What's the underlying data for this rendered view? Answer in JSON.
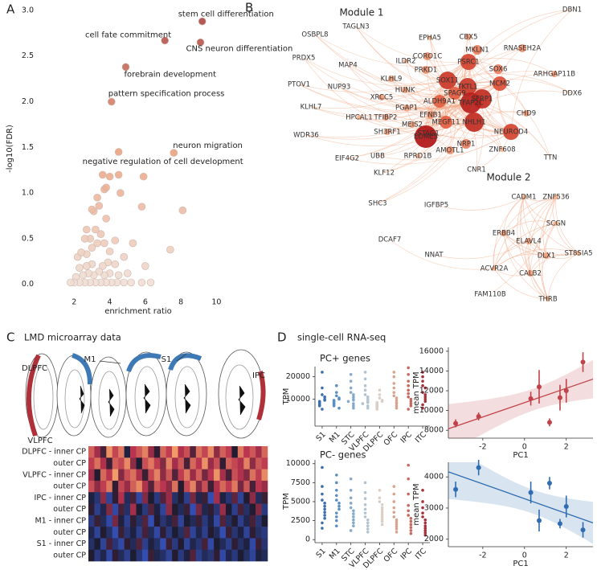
{
  "chart_data": [
    {
      "type": "scatter",
      "label": "A",
      "xlabel": "enrichment ratio",
      "ylabel": "-log10(FDR)",
      "xlim": [
        0,
        11.2
      ],
      "ylim": [
        -0.1,
        3.07
      ],
      "xticks": [
        2,
        4,
        6,
        8,
        10
      ],
      "yticks": [
        {
          "value": 0,
          "label": "0.0"
        },
        0.5,
        {
          "value": 1,
          "label": "1.0"
        },
        1.5,
        {
          "value": 2,
          "label": "2.0"
        },
        2.5,
        {
          "value": 3,
          "label": "3.0"
        }
      ],
      "color_scale": [
        "#efe3dc",
        "#eba07e",
        "#a63b3b"
      ],
      "x": [
        9.2,
        7.1,
        9.1,
        4.9,
        4.1,
        7.6,
        4.5,
        3.6,
        4.0,
        4.5,
        5.9,
        3.8,
        3.7,
        3.3,
        4.6,
        3.0,
        3.1,
        3.4,
        5.8,
        8.1,
        3.8,
        2.7,
        3.2,
        3.5,
        2.6,
        2.9,
        4.3,
        7.4,
        3.0,
        2.4,
        4.0,
        2.2,
        2.7,
        4.8,
        3.3,
        3.7,
        5.3,
        1.8,
        2.0,
        2.3,
        2.6,
        2.9,
        3.2,
        3.5,
        3.8,
        4.1,
        4.4,
        4.8,
        5.2,
        5.8,
        6.3,
        2.1,
        2.5,
        2.8,
        3.1,
        3.4,
        3.7,
        4.0,
        4.5,
        5.0,
        2.3,
        2.7,
        3.0,
        3.6,
        3.9,
        4.3,
        6.0
      ],
      "values": [
        2.88,
        2.67,
        2.65,
        2.38,
        2.0,
        1.44,
        1.45,
        1.2,
        1.18,
        1.2,
        1.18,
        1.06,
        1.04,
        0.95,
        1.0,
        0.82,
        0.8,
        0.86,
        0.85,
        0.81,
        0.72,
        0.6,
        0.6,
        0.55,
        0.5,
        0.5,
        0.48,
        0.38,
        0.4,
        0.35,
        0.36,
        0.3,
        0.33,
        0.3,
        0.45,
        0.45,
        0.45,
        0.02,
        0.02,
        0.02,
        0.02,
        0.02,
        0.02,
        0.02,
        0.02,
        0.02,
        0.02,
        0.02,
        0.02,
        0.02,
        0.02,
        0.08,
        0.1,
        0.12,
        0.1,
        0.14,
        0.1,
        0.12,
        0.1,
        0.12,
        0.18,
        0.2,
        0.22,
        0.2,
        0.24,
        0.22,
        0.2
      ],
      "labels": [
        "stem cell differentiation",
        "cell fate commitment",
        "CNS neuron differentiation",
        "forebrain development",
        "pattern specification process",
        "neuron migration",
        "negative regulation of cell development",
        null,
        null,
        null,
        null,
        null,
        null,
        null,
        null,
        null,
        null,
        null,
        null,
        null,
        null,
        null,
        null,
        null,
        null,
        null,
        null,
        null,
        null,
        null,
        null,
        null,
        null,
        null,
        null,
        null,
        null,
        null,
        null,
        null,
        null,
        null,
        null,
        null,
        null,
        null,
        null,
        null,
        null,
        null,
        null,
        null,
        null,
        null,
        null,
        null,
        null,
        null,
        null,
        null,
        null,
        null,
        null,
        null,
        null,
        null,
        null
      ]
    },
    {
      "type": "network",
      "label": "B",
      "modules": [
        {
          "title": "Module 1",
          "nodes": [
            "DBN1",
            "TAGLN3",
            "OSBPL8",
            "EPHA5",
            "CBX5",
            "MKLN1",
            "RNASEH2A",
            "PRDX5",
            "MAP4",
            "ILDR2",
            "CORO1C",
            "PSRC1",
            "SOX6",
            "ARHGAP11B",
            "PTOV1",
            "NUP93",
            "PRKD1",
            "SOX11",
            "SFRP1",
            "TKTL1",
            "MCM2",
            "DDX6",
            "KLHL9",
            "HUNK",
            "SPAG9",
            "KLHL7",
            "XRCC5",
            "ALDH9A1",
            "TFAP2C",
            "CHD9",
            "PGAP1",
            "EFNB1",
            "HPCAL1",
            "TFIBP2",
            "MEGF11",
            "NHLH1",
            "MEIS2",
            "SH3RF1",
            "STAG1",
            "NEUROD4",
            "WDR36",
            "EOMES",
            "NRP1",
            "AMOTL1",
            "ZNF608",
            "RPRD1B",
            "UBB",
            "EIF4G2",
            "CNR1",
            "TTN",
            "KLF12",
            "SHC3"
          ]
        },
        {
          "title": "Module 2",
          "nodes": [
            "IGFBP5",
            "CADM1",
            "ZNF536",
            "SCGN",
            "ERBB4",
            "ELAVL4",
            "DLX1",
            "ST8SIA5",
            "ACVR2A",
            "CALB2",
            "THRB",
            "DCAF7",
            "NNAT",
            "FAM110B"
          ]
        }
      ]
    },
    {
      "type": "heatmap",
      "label": "C",
      "title": "LMD microarray data",
      "regions": [
        "DLPFC",
        "M1",
        "S1",
        "IPC",
        "VLPFC"
      ],
      "rows": [
        "DLPFC - inner CP",
        "outer CP",
        "VLPFC - inner CP",
        "outer CP",
        "IPC - inner CP",
        "outer CP",
        "M1 - inner CP",
        "outer CP",
        "S1 - inner CP",
        "outer CP"
      ],
      "colormap": [
        "#3b5bd6",
        "#1b1b2f",
        "#b8324e",
        "#f4a46a"
      ],
      "zlim": [
        -2,
        2
      ],
      "values": [
        [
          1.2,
          0.5,
          -0.3,
          1.8,
          0.9,
          1.5,
          -0.8,
          0.7,
          1.1,
          1.6,
          0.4,
          -0.5,
          1.3,
          0.8,
          1.9,
          0.6,
          1.0,
          -0.2,
          1.4,
          0.9,
          1.7,
          0.3,
          1.2,
          0.8,
          -0.6,
          1.5,
          0.7,
          1.1,
          0.5,
          1.3
        ],
        [
          0.8,
          1.4,
          0.6,
          -0.4,
          1.2,
          0.9,
          1.7,
          0.3,
          -0.7,
          1.0,
          1.5,
          0.8,
          0.2,
          1.6,
          0.5,
          1.1,
          -0.3,
          1.3,
          0.7,
          1.8,
          0.4,
          1.0,
          -0.5,
          1.2,
          0.9,
          0.6,
          1.6,
          0.3,
          1.1,
          0.8
        ],
        [
          0.5,
          -0.6,
          1.3,
          0.7,
          1.9,
          0.2,
          1.0,
          1.4,
          0.6,
          -0.4,
          0.9,
          1.6,
          0.3,
          1.1,
          -0.2,
          0.8,
          1.5,
          0.4,
          1.2,
          0.1,
          0.7,
          1.8,
          0.5,
          -0.3,
          1.0,
          0.6,
          0.2,
          1.4,
          0.8,
          1.7
        ],
        [
          1.0,
          0.3,
          0.8,
          1.5,
          -0.5,
          0.9,
          0.4,
          1.2,
          1.7,
          0.6,
          -0.2,
          1.1,
          0.7,
          0.3,
          1.4,
          -0.6,
          0.9,
          1.6,
          0.2,
          1.0,
          -0.4,
          0.6,
          1.3,
          0.8,
          1.5,
          0.1,
          1.1,
          -0.3,
          0.7,
          0.4
        ],
        [
          -0.8,
          -1.2,
          0.3,
          -1.5,
          -0.5,
          0.6,
          -1.0,
          -0.3,
          -1.6,
          0.2,
          -0.7,
          -1.3,
          -0.2,
          0.4,
          -1.1,
          -0.6,
          -1.4,
          0.1,
          -0.9,
          -0.4,
          -1.7,
          0.5,
          -0.8,
          -1.2,
          -0.1,
          -1.5,
          -0.6,
          0.3,
          -1.0,
          -0.4
        ],
        [
          -0.5,
          -1.4,
          -0.9,
          0.2,
          -1.6,
          -0.3,
          -1.1,
          0.5,
          -0.7,
          -1.3,
          -0.2,
          -0.8,
          -1.5,
          0.3,
          -0.6,
          -1.0,
          -0.4,
          -1.7,
          0.1,
          -0.9,
          -0.5,
          -1.2,
          0.4,
          -0.7,
          -1.4,
          -0.3,
          -1.1,
          -0.6,
          0.2,
          -1.3
        ],
        [
          -1.3,
          -0.4,
          -1.0,
          -1.6,
          0.1,
          -0.8,
          -1.4,
          -0.5,
          -1.1,
          -0.2,
          -1.7,
          -0.6,
          -1.2,
          -0.9,
          -0.3,
          -1.5,
          -0.7,
          -1.0,
          -0.4,
          -1.3,
          -0.8,
          -1.6,
          -0.2,
          -1.1,
          -0.6,
          -1.4,
          -0.9,
          -0.3,
          -1.2,
          -0.7
        ],
        [
          -0.9,
          -1.5,
          -0.6,
          -1.1,
          -1.7,
          -0.4,
          -1.2,
          -0.8,
          -1.4,
          -0.3,
          -1.0,
          -1.6,
          -0.5,
          -1.3,
          -0.7,
          -1.1,
          -0.2,
          -1.5,
          -0.9,
          -1.4,
          -0.6,
          -1.0,
          -1.7,
          -0.4,
          -1.2,
          -0.8,
          -1.5,
          -0.5,
          -1.1,
          -1.3
        ],
        [
          -1.1,
          -0.7,
          -1.5,
          -0.3,
          -1.2,
          -1.6,
          -0.5,
          -1.0,
          -0.2,
          -1.4,
          -0.8,
          -1.1,
          -1.7,
          -0.4,
          -1.3,
          -0.6,
          -1.5,
          -0.9,
          -1.2,
          -0.3,
          -1.6,
          -0.7,
          -1.0,
          -1.4,
          -0.5,
          -1.1,
          -0.8,
          -1.6,
          -0.4,
          -1.2
        ],
        [
          -0.6,
          -1.3,
          -0.9,
          -1.6,
          -0.5,
          -1.0,
          -1.4,
          -0.7,
          -1.2,
          -1.7,
          -0.4,
          -0.9,
          -1.1,
          -1.5,
          -0.6,
          -1.3,
          -0.8,
          -0.2,
          -1.4,
          -1.0,
          -1.2,
          -0.5,
          -1.6,
          -0.9,
          -1.3,
          -0.7,
          -1.1,
          -1.5,
          -0.8,
          -1.0
        ]
      ]
    },
    {
      "type": "swarm",
      "label": "D",
      "title": "single-cell RNA-seq",
      "subtitle": "PC+ genes",
      "ylabel": "TPM",
      "categories": [
        "S1",
        "M1",
        "STC",
        "VLPFC",
        "DLPFC",
        "OFC",
        "IPC",
        "ITC"
      ],
      "colors": [
        "#3c6fae",
        "#5b8fc4",
        "#86a9c9",
        "#b4c3d1",
        "#d9cfc7",
        "#d7a48f",
        "#c56a5f",
        "#a8313c"
      ],
      "ylim": [
        -2000,
        24500
      ],
      "yticks": [
        10000,
        20000
      ],
      "values": [
        [
          22000,
          15000,
          12000,
          11000,
          10000,
          9500,
          9000,
          8500,
          8000,
          7500,
          7000,
          5500
        ],
        [
          16000,
          13000,
          11500,
          10500,
          10000,
          9500,
          9000,
          8500,
          8000,
          7500,
          7000,
          6000
        ],
        [
          21000,
          18000,
          15000,
          13000,
          12000,
          11000,
          10000,
          9500,
          9000,
          8000,
          7000,
          6000
        ],
        [
          22000,
          19000,
          16000,
          14000,
          12000,
          11000,
          10000,
          9000,
          8500,
          8000,
          7000,
          6000
        ],
        [
          14000,
          12000,
          10500,
          9500,
          9000,
          8500,
          8000,
          7500,
          7000,
          6500,
          6000,
          5500
        ],
        [
          22000,
          20000,
          17000,
          15000,
          13000,
          11500,
          10500,
          9500,
          8500,
          8000,
          7000,
          6000
        ],
        [
          24000,
          21000,
          18000,
          16000,
          14000,
          12500,
          11000,
          10000,
          9000,
          8000,
          7000,
          5500
        ],
        [
          22000,
          20000,
          18000,
          16000,
          15000,
          13000,
          12000,
          11000,
          10000,
          9000,
          7500,
          6000
        ]
      ]
    },
    {
      "type": "swarm",
      "subtitle": "PC- genes",
      "ylabel": "TPM",
      "categories": [
        "S1",
        "M1",
        "STC",
        "VLPFC",
        "DLPFC",
        "OFC",
        "IPC",
        "ITC"
      ],
      "colors": [
        "#3c6fae",
        "#5b8fc4",
        "#86a9c9",
        "#b4c3d1",
        "#d9cfc7",
        "#d7a48f",
        "#c56a5f",
        "#a8313c"
      ],
      "ylim": [
        -400,
        10500
      ],
      "yticks": [
        0,
        2500,
        5000,
        7500,
        10000
      ],
      "values": [
        [
          9500,
          7000,
          6000,
          5200,
          4800,
          4400,
          4000,
          3600,
          3200,
          2800,
          2200,
          1500
        ],
        [
          8500,
          7500,
          6500,
          5800,
          5200,
          4800,
          4400,
          4000,
          3500,
          3000,
          2500,
          1800
        ],
        [
          8000,
          6500,
          5500,
          4800,
          4200,
          3800,
          3400,
          3000,
          2600,
          2200,
          1800,
          1200
        ],
        [
          7500,
          6200,
          5400,
          4600,
          4000,
          3500,
          3000,
          2600,
          2200,
          1800,
          1400,
          1000
        ],
        [
          6500,
          5500,
          5000,
          4600,
          4200,
          3900,
          3600,
          3300,
          3000,
          2700,
          2400,
          2000
        ],
        [
          7000,
          6000,
          5000,
          4200,
          3600,
          3000,
          2600,
          2300,
          2000,
          1700,
          1400,
          1000
        ],
        [
          9800,
          8000,
          6000,
          4500,
          3800,
          3200,
          2800,
          2400,
          2000,
          1600,
          1200,
          800
        ],
        [
          6500,
          5000,
          4200,
          3500,
          3000,
          2600,
          2200,
          1800,
          1500,
          1200,
          900,
          600
        ]
      ]
    },
    {
      "type": "regression",
      "xlabel": "PC1",
      "ylabel": "mean TPM",
      "color": "#c0424a",
      "xlim": [
        -3.65,
        3.28
      ],
      "xticks": [
        -2,
        0,
        2
      ],
      "ylim": [
        7200,
        16400
      ],
      "yticks": [
        8000,
        10000,
        12000,
        14000,
        16000
      ],
      "x": [
        -3.3,
        -2.2,
        0.3,
        0.7,
        1.2,
        1.7,
        2.0,
        2.8
      ],
      "values": [
        8700,
        9400,
        11200,
        12400,
        8800,
        11300,
        12000,
        14900
      ],
      "errors": [
        400,
        400,
        700,
        1700,
        400,
        1300,
        1200,
        1000
      ]
    },
    {
      "type": "regression",
      "xlabel": "PC1",
      "ylabel": "mean TPM",
      "color": "#2f6cb0",
      "xlim": [
        -3.65,
        3.28
      ],
      "xticks": [
        -2,
        0,
        2
      ],
      "ylim": [
        1760,
        4470
      ],
      "yticks": [
        2000,
        3000,
        4000
      ],
      "x": [
        -3.3,
        -2.2,
        0.3,
        0.7,
        1.2,
        1.7,
        2.0,
        2.8
      ],
      "values": [
        3600,
        4300,
        3500,
        2600,
        3800,
        2500,
        3050,
        2300
      ],
      "errors": [
        250,
        250,
        350,
        350,
        200,
        150,
        350,
        250
      ]
    }
  ]
}
